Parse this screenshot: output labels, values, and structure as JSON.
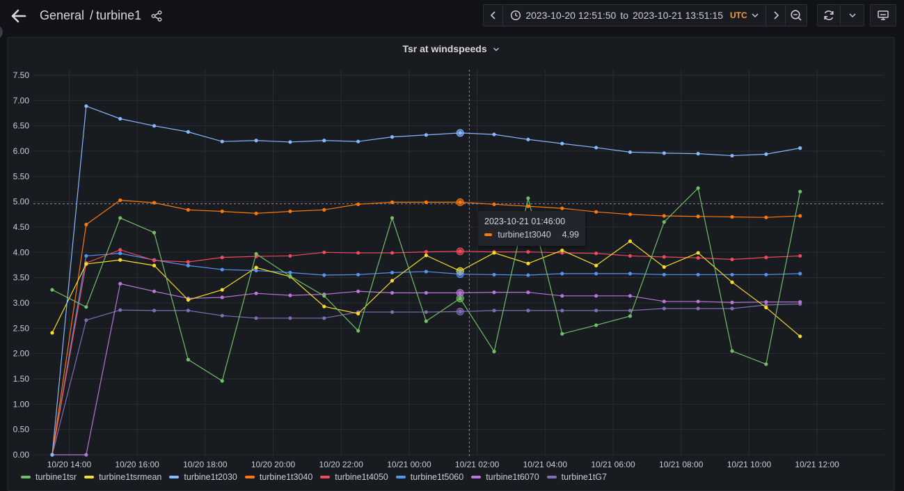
{
  "header": {
    "folder": "General",
    "separator": "/",
    "dashboard": "turbine1",
    "time_from": "2023-10-20 12:51:50",
    "time_to_word": "to",
    "time_to": "2023-10-21 13:51:15",
    "timezone": "UTC"
  },
  "panel": {
    "title": "Tsr at windspeeds"
  },
  "tooltip": {
    "time": "2023-10-21 01:46:00",
    "series": "turbine1t3040",
    "value": "4.99",
    "color": "#ff780a"
  },
  "icons": [
    "arrow-left-icon",
    "share-icon",
    "chevron-left-icon",
    "clock-icon",
    "chevron-down-icon",
    "chevron-right-icon",
    "zoom-out-icon",
    "refresh-icon",
    "chevron-down-icon",
    "tv-icon"
  ],
  "chart_data": {
    "type": "line",
    "title": "Tsr at windspeeds",
    "ylim": [
      0,
      7.5
    ],
    "yticks": [
      "0.00",
      "0.50",
      "1.00",
      "1.50",
      "2.00",
      "2.50",
      "3.00",
      "3.50",
      "4.00",
      "4.50",
      "5.00",
      "5.50",
      "6.00",
      "6.50",
      "7.00",
      "7.50"
    ],
    "x": [
      "10/20 13:30",
      "10/20 14:30",
      "10/20 15:30",
      "10/20 16:30",
      "10/20 17:30",
      "10/20 18:30",
      "10/20 19:30",
      "10/20 20:30",
      "10/20 21:30",
      "10/20 22:30",
      "10/20 23:30",
      "10/21 00:30",
      "10/21 01:30",
      "10/21 02:30",
      "10/21 03:30",
      "10/21 04:30",
      "10/21 05:30",
      "10/21 06:30",
      "10/21 07:30",
      "10/21 08:30",
      "10/21 09:30",
      "10/21 10:30",
      "10/21 11:30",
      "10/21 12:30",
      "10/21 13:30"
    ],
    "xhours": [
      0,
      1,
      2,
      3,
      4,
      5,
      6,
      7,
      8,
      9,
      10,
      11,
      12,
      13,
      14,
      15,
      16,
      17,
      18,
      19,
      20,
      21,
      22,
      23,
      24
    ],
    "xticks": [
      {
        "label": "10/20 14:00",
        "h": 0.5
      },
      {
        "label": "10/20 16:00",
        "h": 2.5
      },
      {
        "label": "10/20 18:00",
        "h": 4.5
      },
      {
        "label": "10/20 20:00",
        "h": 6.5
      },
      {
        "label": "10/20 22:00",
        "h": 8.5
      },
      {
        "label": "10/21 00:00",
        "h": 10.5
      },
      {
        "label": "10/21 02:00",
        "h": 12.5
      },
      {
        "label": "10/21 04:00",
        "h": 14.5
      },
      {
        "label": "10/21 06:00",
        "h": 16.5
      },
      {
        "label": "10/21 08:00",
        "h": 18.5
      },
      {
        "label": "10/21 10:00",
        "h": 20.5
      },
      {
        "label": "10/21 12:00",
        "h": 22.5
      }
    ],
    "cursor_h": 12.27,
    "threshold_y": 4.96,
    "series": [
      {
        "name": "turbine1tsr",
        "color": "#73bf69",
        "values": [
          3.26,
          2.92,
          4.68,
          4.39,
          1.88,
          1.46,
          3.97,
          3.53,
          3.14,
          2.45,
          4.68,
          2.64,
          3.09,
          2.04,
          5.07,
          2.39,
          2.56,
          2.74,
          4.6,
          5.27,
          2.05,
          1.79,
          5.2,
          null,
          null
        ]
      },
      {
        "name": "turbine1tsrmean",
        "color": "#fade2a",
        "values": [
          2.41,
          3.77,
          3.85,
          3.74,
          3.06,
          3.26,
          3.7,
          3.52,
          2.93,
          2.79,
          3.44,
          3.94,
          3.63,
          3.99,
          3.78,
          4.04,
          3.74,
          4.22,
          3.71,
          3.99,
          3.41,
          2.91,
          2.34,
          null,
          null
        ]
      },
      {
        "name": "turbine1t2030",
        "color": "#8ab8ff",
        "values": [
          0,
          6.89,
          6.64,
          6.5,
          6.38,
          6.19,
          6.21,
          6.18,
          6.21,
          6.19,
          6.28,
          6.32,
          6.36,
          6.33,
          6.23,
          6.15,
          6.07,
          5.98,
          5.96,
          5.95,
          5.91,
          5.94,
          6.06,
          null,
          null
        ]
      },
      {
        "name": "turbine1t3040",
        "color": "#ff780a",
        "values": [
          0,
          4.55,
          5.03,
          4.98,
          4.84,
          4.81,
          4.77,
          4.81,
          4.84,
          4.95,
          4.99,
          4.99,
          4.99,
          4.95,
          4.91,
          4.87,
          4.8,
          4.75,
          4.72,
          4.71,
          4.7,
          4.69,
          4.72,
          null,
          null
        ]
      },
      {
        "name": "turbine1t4050",
        "color": "#f2495c",
        "values": [
          0,
          3.79,
          4.05,
          3.84,
          3.81,
          3.9,
          3.92,
          3.93,
          4.0,
          3.99,
          3.99,
          4.01,
          4.02,
          4.01,
          4.01,
          3.99,
          3.98,
          3.93,
          3.91,
          3.89,
          3.86,
          3.9,
          3.93,
          null,
          null
        ]
      },
      {
        "name": "turbine1t5060",
        "color": "#5794f2",
        "values": [
          0,
          3.93,
          3.98,
          3.85,
          3.74,
          3.66,
          3.64,
          3.6,
          3.55,
          3.56,
          3.6,
          3.62,
          3.57,
          3.56,
          3.55,
          3.58,
          3.58,
          3.58,
          3.56,
          3.56,
          3.56,
          3.56,
          3.58,
          null,
          null
        ]
      },
      {
        "name": "turbine1t6070",
        "color": "#b877d9",
        "values": [
          0,
          0,
          3.38,
          3.23,
          3.09,
          3.11,
          3.19,
          3.15,
          3.17,
          3.23,
          3.2,
          3.2,
          3.2,
          3.21,
          3.21,
          3.14,
          3.14,
          3.14,
          3.03,
          3.03,
          3.01,
          3.02,
          3.02,
          null,
          null
        ]
      },
      {
        "name": "turbine1tG7",
        "color": "#806eb7",
        "values": [
          0,
          2.66,
          2.86,
          2.85,
          2.85,
          2.75,
          2.7,
          2.7,
          2.7,
          2.82,
          2.82,
          2.82,
          2.83,
          2.85,
          2.85,
          2.85,
          2.85,
          2.85,
          2.89,
          2.89,
          2.89,
          2.96,
          2.98,
          null,
          null
        ]
      }
    ]
  }
}
